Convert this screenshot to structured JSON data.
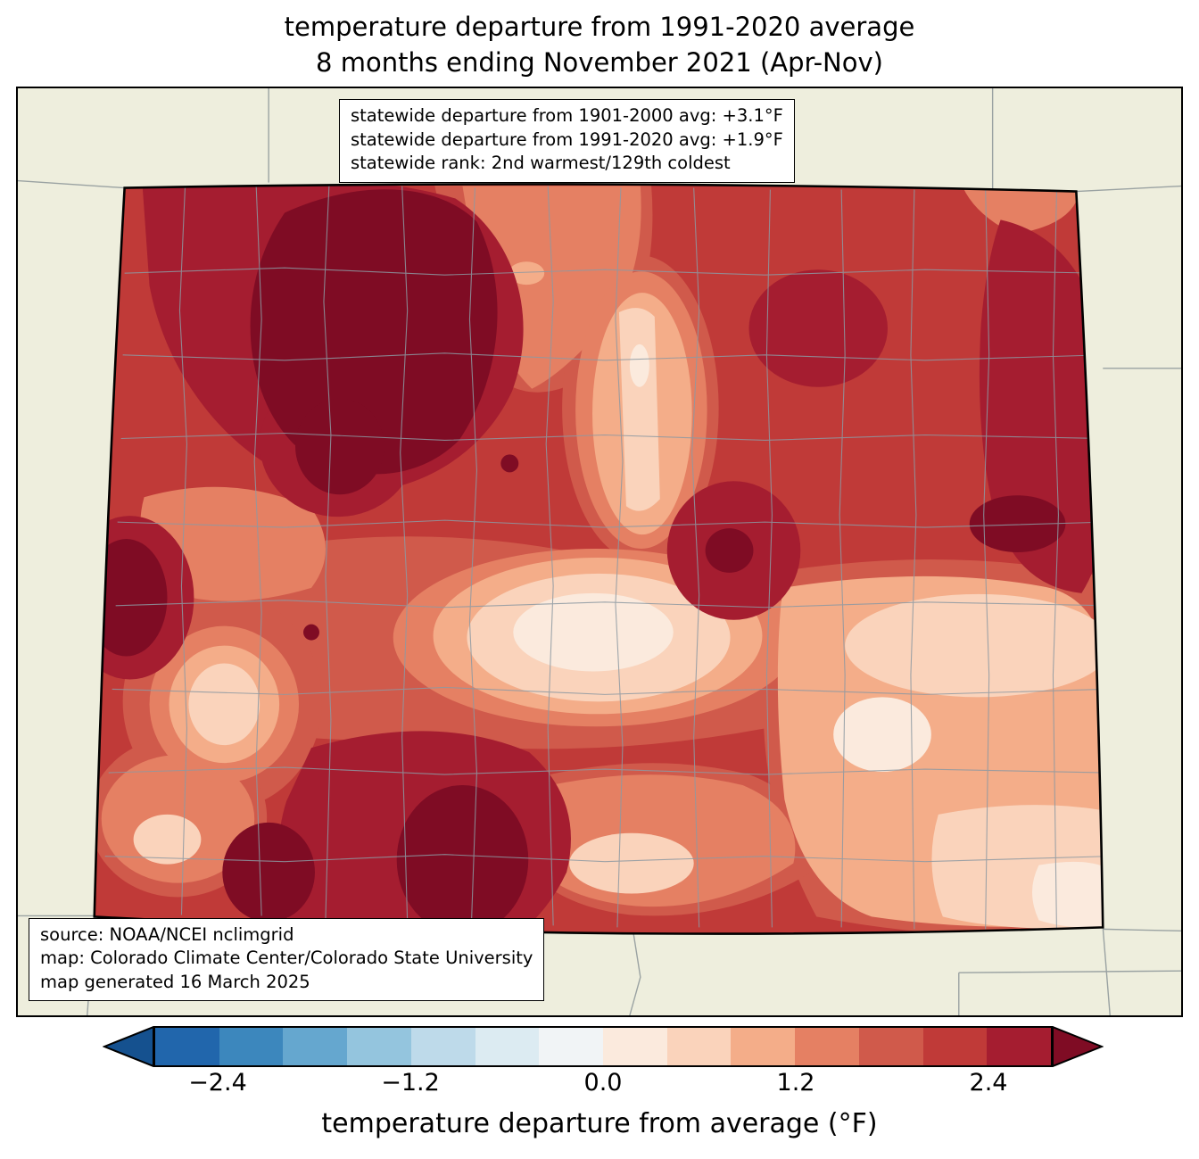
{
  "title": {
    "line1": "temperature departure from 1991-2020 average",
    "line2": "8 months ending November 2021 (Apr-Nov)"
  },
  "stats_box": {
    "line1": "statewide departure from 1901-2000 avg: +3.1°F",
    "line2": "statewide departure from 1991-2020 avg: +1.9°F",
    "line3": "statewide rank: 2nd warmest/129th coldest"
  },
  "source_box": {
    "line1": "source: NOAA/NCEI nclimgrid",
    "line2": "map: Colorado Climate Center/Colorado State University",
    "line3": "map generated 16 March 2025"
  },
  "colorbar": {
    "label": "temperature departure from average (°F)",
    "unit": "°F",
    "range_min": -2.8,
    "range_max": 2.8,
    "step": 0.4,
    "under_arrow_color": "#15518f",
    "over_arrow_color": "#7f0c24",
    "segment_colors": [
      "#2166ac",
      "#3c87bd",
      "#65a7cf",
      "#94c5de",
      "#bedaea",
      "#dcebf2",
      "#f1f4f6",
      "#fbeadd",
      "#fad3bb",
      "#f4ad89",
      "#e58063",
      "#d05a4b",
      "#c03a38",
      "#a51d30"
    ],
    "ticks": [
      {
        "value": -2.4,
        "label": "−2.4"
      },
      {
        "value": -1.2,
        "label": "−1.2"
      },
      {
        "value": 0.0,
        "label": "0.0"
      },
      {
        "value": 1.2,
        "label": "1.2"
      },
      {
        "value": 2.4,
        "label": "2.4"
      }
    ]
  },
  "map": {
    "region_colors": {
      "background": "#eeeedd",
      "county_line": "#8d99a2",
      "neighbor_line": "#9aa2a2",
      "state_border": "#000000",
      "cream": "#fbeadd",
      "pale": "#fad3bb",
      "light_salmon": "#f4ad89",
      "salmon": "#e58063",
      "mid_red": "#d05a4b",
      "base_red": "#c03a38",
      "dark_red": "#a51d30",
      "maroon": "#7f0c24"
    }
  }
}
